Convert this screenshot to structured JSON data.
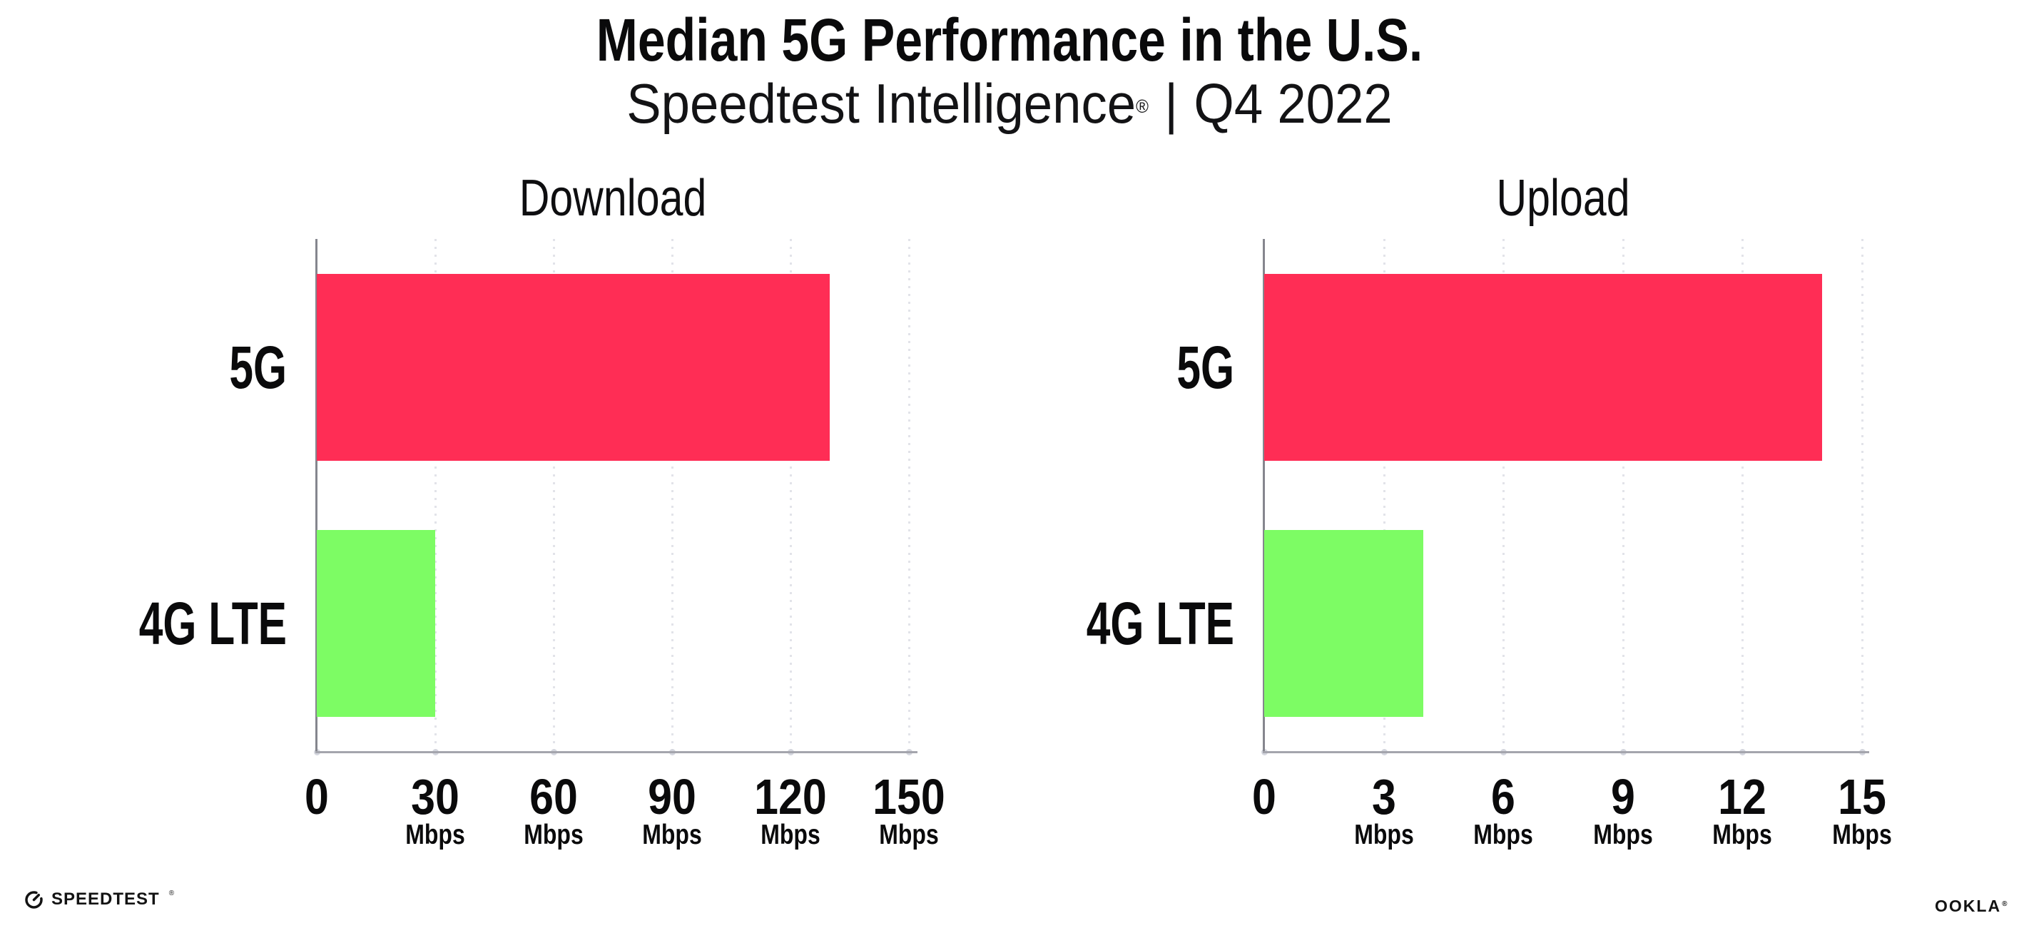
{
  "page": {
    "title": "Median 5G Performance in the U.S.",
    "subtitle_brand": "Speedtest Intelligence",
    "subtitle_mark": "®",
    "subtitle_separator": "|",
    "subtitle_period": "Q4 2022"
  },
  "colors": {
    "bar_5g": "#FF2D55",
    "bar_4g_lte": "#7DFC64",
    "axis_line": "#85868E",
    "baseline": "#A4A5AD",
    "gridline": "#E2E3E9",
    "axis_tick_dot": "#D4D6DE",
    "text": "#0A0A0B"
  },
  "chart_data": [
    {
      "type": "bar",
      "orientation": "horizontal",
      "title": "Download",
      "categories": [
        "5G",
        "4G LTE"
      ],
      "values": [
        130,
        30
      ],
      "unit": "Mbps",
      "xlim": [
        0,
        150
      ],
      "xticks": [
        0,
        30,
        60,
        90,
        120,
        150
      ],
      "xtick_unit_label": "Mbps",
      "grid": "dotted-vertical",
      "legend": "none",
      "bar_colors": [
        "#FF2D55",
        "#7DFC64"
      ]
    },
    {
      "type": "bar",
      "orientation": "horizontal",
      "title": "Upload",
      "categories": [
        "5G",
        "4G LTE"
      ],
      "values": [
        14,
        4
      ],
      "unit": "Mbps",
      "xlim": [
        0,
        15
      ],
      "xticks": [
        0,
        3,
        6,
        9,
        12,
        15
      ],
      "xtick_unit_label": "Mbps",
      "grid": "dotted-vertical",
      "legend": "none",
      "bar_colors": [
        "#FF2D55",
        "#7DFC64"
      ]
    }
  ],
  "footer": {
    "speedtest_label": "SPEEDTEST",
    "speedtest_mark": "®",
    "ookla_label": "OOKLA",
    "ookla_mark": "®"
  }
}
